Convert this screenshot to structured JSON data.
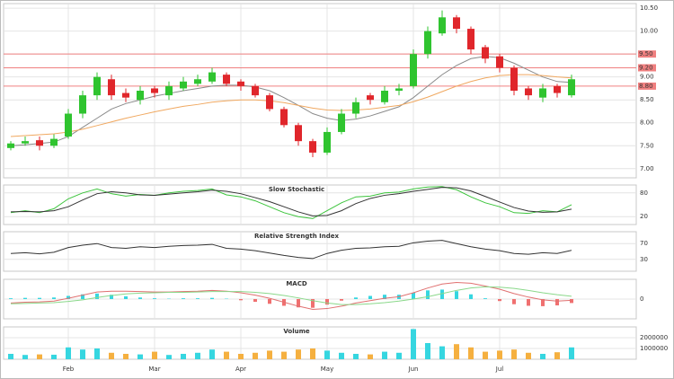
{
  "chart_data": [
    {
      "type": "candlestick",
      "categories": [
        null,
        null,
        null,
        null,
        "Feb",
        null,
        null,
        null,
        null,
        null,
        "Mar",
        null,
        null,
        null,
        null,
        null,
        "Apr",
        null,
        null,
        null,
        null,
        null,
        "May",
        null,
        null,
        null,
        null,
        null,
        "Jun",
        null,
        null,
        null,
        null,
        null,
        "Jul",
        null,
        null,
        null,
        null,
        null
      ],
      "open": [
        7.45,
        7.55,
        7.62,
        7.5,
        7.7,
        8.2,
        8.6,
        8.95,
        8.65,
        8.5,
        8.75,
        8.6,
        8.75,
        8.85,
        8.9,
        9.05,
        8.9,
        8.8,
        8.6,
        8.3,
        7.95,
        7.6,
        7.35,
        7.8,
        8.2,
        8.6,
        8.45,
        8.7,
        8.8,
        9.5,
        9.95,
        10.3,
        10.05,
        9.65,
        9.45,
        9.2,
        8.75,
        8.55,
        8.8,
        8.6
      ],
      "high": [
        7.6,
        7.7,
        7.7,
        7.75,
        8.3,
        8.7,
        9.1,
        9.05,
        8.75,
        8.8,
        8.8,
        8.9,
        9.0,
        9.05,
        9.2,
        9.1,
        8.95,
        8.85,
        8.65,
        8.35,
        8.0,
        7.65,
        7.9,
        8.3,
        8.55,
        8.65,
        8.8,
        8.85,
        9.6,
        10.1,
        10.45,
        10.35,
        10.1,
        9.7,
        9.5,
        9.25,
        8.8,
        8.85,
        8.85,
        9.05
      ],
      "low": [
        7.4,
        7.5,
        7.4,
        7.45,
        7.65,
        8.1,
        8.5,
        8.5,
        8.45,
        8.4,
        8.55,
        8.5,
        8.7,
        8.8,
        8.85,
        8.8,
        8.7,
        8.55,
        8.25,
        7.9,
        7.5,
        7.25,
        7.3,
        7.75,
        8.1,
        8.4,
        8.4,
        8.6,
        8.75,
        9.4,
        9.9,
        9.95,
        9.5,
        9.3,
        9.1,
        8.6,
        8.5,
        8.45,
        8.55,
        8.55
      ],
      "close": [
        7.55,
        7.6,
        7.5,
        7.65,
        8.2,
        8.6,
        9.0,
        8.6,
        8.55,
        8.7,
        8.65,
        8.8,
        8.9,
        8.95,
        9.1,
        8.85,
        8.8,
        8.6,
        8.3,
        7.95,
        7.6,
        7.35,
        7.8,
        8.2,
        8.45,
        8.5,
        8.7,
        8.75,
        9.5,
        10.0,
        10.3,
        10.05,
        9.6,
        9.4,
        9.2,
        8.7,
        8.6,
        8.75,
        8.65,
        8.95
      ],
      "up_color": "#2fc42f",
      "down_color": "#e0262b",
      "series": [
        {
          "color": "#8a8a8a",
          "values": [
            7.5,
            7.52,
            7.55,
            7.58,
            7.7,
            7.9,
            8.1,
            8.3,
            8.42,
            8.5,
            8.58,
            8.64,
            8.7,
            8.75,
            8.8,
            8.82,
            8.82,
            8.78,
            8.7,
            8.55,
            8.38,
            8.2,
            8.1,
            8.05,
            8.08,
            8.15,
            8.25,
            8.35,
            8.55,
            8.8,
            9.05,
            9.25,
            9.4,
            9.45,
            9.42,
            9.3,
            9.15,
            9.0,
            8.9,
            8.88
          ]
        },
        {
          "color": "#f0a860",
          "values": [
            7.7,
            7.72,
            7.74,
            7.76,
            7.8,
            7.86,
            7.94,
            8.02,
            8.1,
            8.17,
            8.24,
            8.3,
            8.36,
            8.4,
            8.45,
            8.48,
            8.5,
            8.5,
            8.48,
            8.44,
            8.38,
            8.32,
            8.28,
            8.27,
            8.28,
            8.3,
            8.34,
            8.38,
            8.46,
            8.56,
            8.68,
            8.8,
            8.9,
            8.98,
            9.03,
            9.05,
            9.05,
            9.03,
            9.0,
            8.98
          ]
        }
      ],
      "hlines": [
        {
          "value": 9.5,
          "label": "9.50"
        },
        {
          "value": 9.2,
          "label": "9.20"
        },
        {
          "value": 8.8,
          "label": "8.80"
        }
      ],
      "hline_color": "#f08080",
      "ylim": [
        6.8,
        10.6
      ],
      "yticks": [
        {
          "value": 7,
          "label": "7.00"
        },
        {
          "value": 7.5,
          "label": "7.50"
        },
        {
          "value": 8,
          "label": "8.00"
        },
        {
          "value": 8.5,
          "label": "8.50"
        },
        {
          "value": 9,
          "label": "9.00"
        },
        {
          "value": 9.5,
          "label": "9.50"
        },
        {
          "value": 10,
          "label": "10.00"
        },
        {
          "value": 10.5,
          "label": "10.50"
        }
      ],
      "grid": true
    },
    {
      "type": "line",
      "title": "Slow Stochastic",
      "ylim": [
        0,
        100
      ],
      "yticks": [
        20,
        80
      ],
      "grid": true,
      "series": [
        {
          "color": "#3cc43c",
          "values": [
            30,
            35,
            30,
            40,
            65,
            80,
            90,
            78,
            72,
            76,
            74,
            80,
            84,
            86,
            90,
            75,
            70,
            60,
            45,
            30,
            20,
            15,
            35,
            55,
            70,
            72,
            80,
            82,
            90,
            95,
            96,
            88,
            70,
            55,
            45,
            30,
            28,
            35,
            32,
            50
          ]
        },
        {
          "color": "#333333",
          "values": [
            32,
            33,
            32,
            35,
            45,
            62,
            78,
            83,
            80,
            75,
            74,
            77,
            80,
            83,
            87,
            84,
            78,
            68,
            58,
            45,
            32,
            22,
            23,
            35,
            53,
            66,
            74,
            78,
            84,
            89,
            94,
            93,
            85,
            71,
            57,
            43,
            34,
            31,
            32,
            39
          ]
        }
      ]
    },
    {
      "type": "line",
      "title": "Relative Strength Index",
      "ylim": [
        0,
        100
      ],
      "yticks": [
        30,
        70
      ],
      "grid": true,
      "series": [
        {
          "color": "#333333",
          "values": [
            45,
            47,
            44,
            48,
            60,
            66,
            70,
            60,
            58,
            62,
            60,
            63,
            65,
            66,
            68,
            58,
            56,
            52,
            46,
            40,
            35,
            32,
            45,
            53,
            58,
            59,
            62,
            63,
            72,
            76,
            78,
            70,
            62,
            56,
            52,
            45,
            43,
            47,
            45,
            53
          ]
        }
      ]
    },
    {
      "type": "macd",
      "title": "MACD",
      "ylim": [
        -0.5,
        0.5
      ],
      "yticks": [
        0
      ],
      "grid": true,
      "up_color": "#36d6e0",
      "down_color": "#f07070",
      "series": [
        {
          "kind": "bar",
          "values": [
            0.02,
            0.03,
            0.03,
            0.04,
            0.08,
            0.12,
            0.14,
            0.11,
            0.07,
            0.04,
            0.02,
            0.01,
            0.02,
            0.02,
            0.03,
            0.01,
            -0.03,
            -0.07,
            -0.12,
            -0.17,
            -0.21,
            -0.22,
            -0.14,
            -0.04,
            0.04,
            0.08,
            0.11,
            0.11,
            0.16,
            0.22,
            0.24,
            0.2,
            0.12,
            0.02,
            -0.05,
            -0.13,
            -0.17,
            -0.18,
            -0.16,
            -0.1
          ]
        },
        {
          "kind": "line",
          "color": "#e07070",
          "values": [
            -0.1,
            -0.08,
            -0.07,
            -0.05,
            0.02,
            0.1,
            0.18,
            0.2,
            0.2,
            0.19,
            0.18,
            0.18,
            0.19,
            0.2,
            0.22,
            0.2,
            0.16,
            0.1,
            0.02,
            -0.08,
            -0.18,
            -0.26,
            -0.24,
            -0.18,
            -0.1,
            -0.04,
            0.02,
            0.06,
            0.16,
            0.28,
            0.38,
            0.42,
            0.4,
            0.33,
            0.25,
            0.14,
            0.05,
            -0.02,
            -0.05,
            -0.03
          ]
        },
        {
          "kind": "line",
          "color": "#8ad88a",
          "values": [
            -0.12,
            -0.11,
            -0.1,
            -0.09,
            -0.06,
            -0.02,
            0.04,
            0.09,
            0.13,
            0.15,
            0.16,
            0.17,
            0.17,
            0.18,
            0.19,
            0.19,
            0.19,
            0.17,
            0.14,
            0.09,
            0.03,
            -0.04,
            -0.1,
            -0.14,
            -0.14,
            -0.12,
            -0.09,
            -0.05,
            0,
            0.06,
            0.14,
            0.22,
            0.28,
            0.31,
            0.3,
            0.27,
            0.22,
            0.16,
            0.11,
            0.07
          ]
        }
      ]
    },
    {
      "type": "bar",
      "title": "Volume",
      "ylim": [
        0,
        3000000
      ],
      "yticks": [
        1000000,
        2000000
      ],
      "grid": true,
      "up_color": "#36d6e0",
      "down_color": "#f5b040",
      "values": [
        500000,
        400000,
        450000,
        420000,
        1100000,
        900000,
        1000000,
        600000,
        500000,
        450000,
        700000,
        400000,
        500000,
        600000,
        900000,
        700000,
        500000,
        600000,
        800000,
        700000,
        900000,
        1000000,
        800000,
        600000,
        500000,
        450000,
        700000,
        600000,
        2800000,
        1500000,
        1200000,
        1400000,
        1100000,
        700000,
        800000,
        900000,
        600000,
        500000,
        650000,
        1100000
      ]
    }
  ]
}
